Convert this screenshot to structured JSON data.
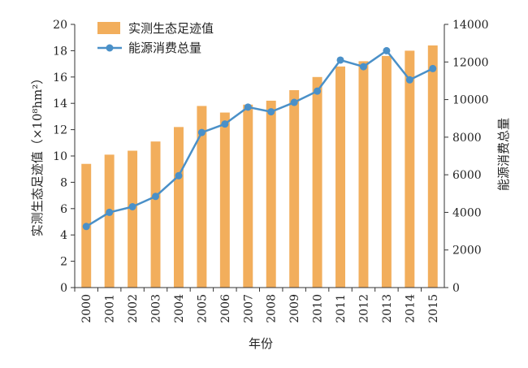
{
  "chart_data": {
    "type": "bar+line",
    "categories": [
      "2000",
      "2001",
      "2002",
      "2003",
      "2004",
      "2005",
      "2006",
      "2007",
      "2008",
      "2009",
      "2010",
      "2011",
      "2012",
      "2013",
      "2014",
      "2015"
    ],
    "series": [
      {
        "name": "实测生态足迹值",
        "type": "bar",
        "axis": "left",
        "color": "#F2AE5C",
        "values": [
          9.4,
          10.1,
          10.4,
          11.1,
          12.2,
          13.8,
          13.3,
          13.9,
          14.2,
          15.0,
          16.0,
          16.8,
          17.2,
          17.6,
          18.0,
          18.4
        ]
      },
      {
        "name": "能源消费总量",
        "type": "line",
        "axis": "right",
        "color": "#4A90C8",
        "values": [
          3250,
          4000,
          4300,
          4850,
          5950,
          8250,
          8700,
          9600,
          9350,
          9850,
          10450,
          12100,
          11750,
          12600,
          11050,
          11650
        ]
      }
    ],
    "xlabel": "年份",
    "ylabel_left": "实测生态足迹值（×10⁸hm²）",
    "ylabel_right": "能源消费总量",
    "ylim_left": [
      0,
      20
    ],
    "yticks_left": [
      "0",
      "2",
      "4",
      "6",
      "8",
      "10",
      "12",
      "14",
      "16",
      "18",
      "20"
    ],
    "ylim_right": [
      0,
      14000
    ],
    "yticks_right": [
      "0",
      "2000",
      "4000",
      "6000",
      "8000",
      "10000",
      "12000",
      "14000"
    ],
    "grid": false,
    "legend_position": "top-left"
  }
}
